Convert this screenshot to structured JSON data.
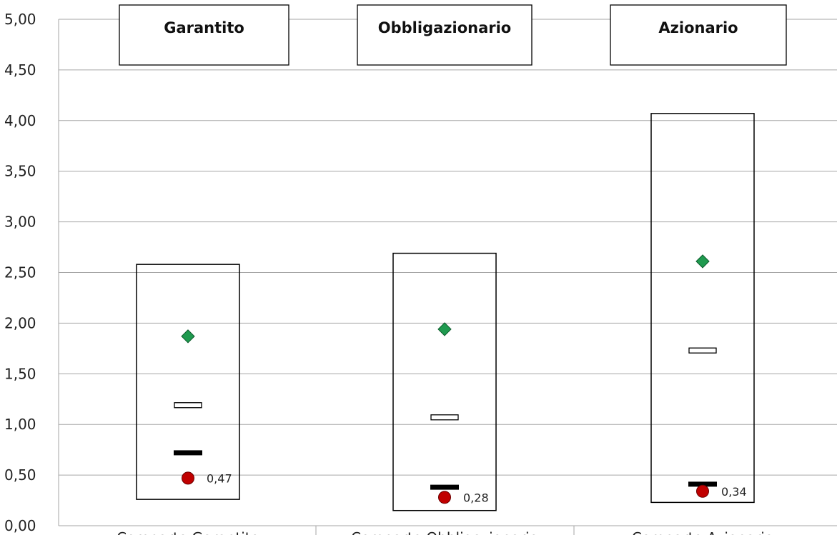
{
  "chart_data": {
    "type": "box",
    "title": "",
    "xlabel": "",
    "ylabel": "",
    "ylim": [
      0,
      5
    ],
    "y_ticks": [
      "0,00",
      "0,50",
      "1,00",
      "1,50",
      "2,00",
      "2,50",
      "3,00",
      "3,50",
      "4,00",
      "4,50",
      "5,00"
    ],
    "grid": true,
    "category_titles": [
      "Garantito",
      "Obbligazionario",
      "Azionario"
    ],
    "x_categories": [
      "Comparto Garantito",
      "Comparto Obbligazionario",
      "Comparto Azionario"
    ],
    "series": [
      {
        "name": "range_min",
        "values": [
          0.26,
          0.15,
          0.23
        ]
      },
      {
        "name": "range_max",
        "values": [
          2.58,
          2.69,
          4.07
        ]
      },
      {
        "name": "white_marker",
        "values": [
          1.19,
          1.07,
          1.73
        ]
      },
      {
        "name": "black_marker",
        "values": [
          0.72,
          0.38,
          0.41
        ]
      },
      {
        "name": "diamond",
        "values": [
          1.87,
          1.94,
          2.61
        ]
      },
      {
        "name": "circle",
        "values": [
          0.47,
          0.28,
          0.34
        ],
        "labels": [
          "0,47",
          "0,28",
          "0,34"
        ]
      }
    ],
    "colors": {
      "diamond": "#1f9a4f",
      "circle": "#c00000",
      "grid": "#a6a6a6",
      "box_stroke": "#000000"
    }
  }
}
